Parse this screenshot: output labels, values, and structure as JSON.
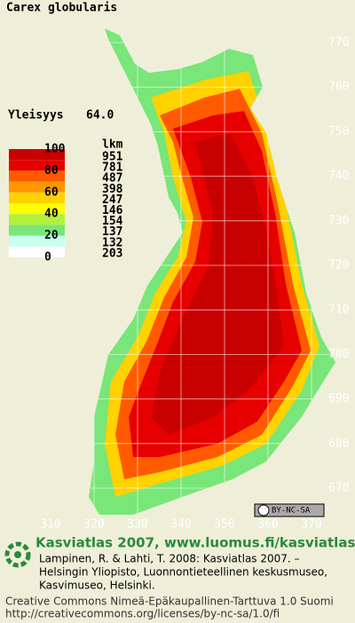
{
  "header": {
    "title": "Carex globularis",
    "frequency_label": "Yleisyys",
    "frequency": "64.0"
  },
  "legend": {
    "count_header": "lkm",
    "levels": [
      "100",
      "80",
      "60",
      "40",
      "20",
      "0"
    ],
    "counts": [
      951,
      781,
      487,
      398,
      247,
      146,
      154,
      137,
      132,
      203
    ],
    "colors": [
      "#c80000",
      "#e60000",
      "#ff5a00",
      "#ff9600",
      "#ffd200",
      "#ffff00",
      "#b4f03c",
      "#78e678",
      "#c8fff0",
      "#ffffff"
    ]
  },
  "map": {
    "xticks": [
      310,
      320,
      330,
      340,
      350,
      360,
      370
    ],
    "yticks": [
      670,
      680,
      690,
      700,
      710,
      720,
      730,
      740,
      750,
      760,
      770
    ]
  },
  "footer": {
    "title": "Kasviatlas 2007, www.luomus.fi/kasviatlas",
    "citation": [
      "Lampinen, R. & Lahti, T. 2008: Kasviatlas 2007. –",
      "Helsingin Yliopisto, Luonnontieteellinen keskusmuseo,",
      "Kasvimuseo, Helsinki."
    ],
    "license": [
      "Creative Commons Nimeä-Epäkaupallinen-Tarttuva 1.0 Suomi",
      "http://creativecommons.org/licenses/by-nc-sa/1.0/fi"
    ],
    "badge": "BY-NC-SA"
  }
}
